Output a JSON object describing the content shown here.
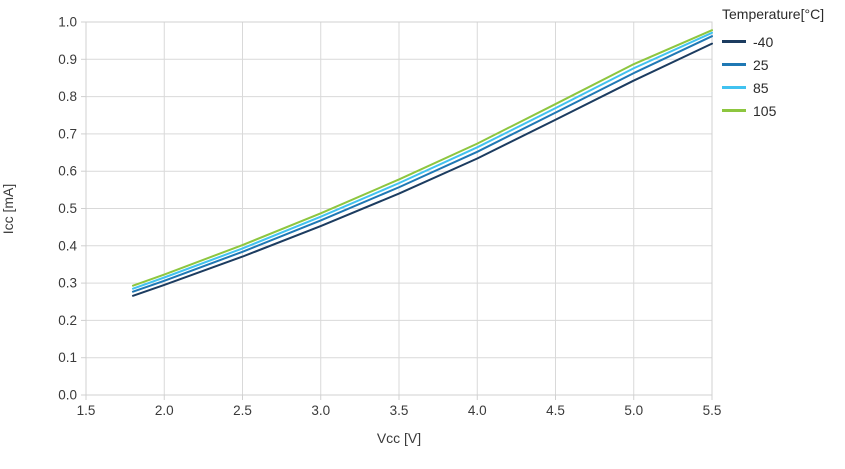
{
  "palette": {
    "background": "#ffffff",
    "grid": "#d9d9d9",
    "axis": "#d0d0d0",
    "tick_text": "#3a3a3a",
    "title_text": "#2b2b2b"
  },
  "chart_data": {
    "type": "line",
    "title": "",
    "xlabel": "Vcc [V]",
    "ylabel": "Icc [mA]",
    "xlim": [
      1.5,
      5.5
    ],
    "ylim": [
      0.0,
      1.0
    ],
    "grid": true,
    "legend_title": "Temperature[°C]",
    "legend_position": "top-right",
    "xticks": [
      1.5,
      2.0,
      2.5,
      3.0,
      3.5,
      4.0,
      4.5,
      5.0,
      5.5
    ],
    "xtick_labels": [
      "1.5",
      "2.0",
      "2.5",
      "3.0",
      "3.5",
      "4.0",
      "4.5",
      "5.0",
      "5.5"
    ],
    "yticks": [
      0.0,
      0.1,
      0.2,
      0.3,
      0.4,
      0.5,
      0.6,
      0.7,
      0.8,
      0.9,
      1.0
    ],
    "ytick_labels": [
      "0.0",
      "0.1",
      "0.2",
      "0.3",
      "0.4",
      "0.5",
      "0.6",
      "0.7",
      "0.8",
      "0.9",
      "1.0"
    ],
    "x": [
      1.8,
      2.0,
      2.5,
      3.0,
      3.5,
      4.0,
      4.5,
      5.0,
      5.5
    ],
    "series": [
      {
        "name": "-40",
        "color": "#1c3c60",
        "values": [
          0.266,
          0.295,
          0.371,
          0.453,
          0.54,
          0.634,
          0.738,
          0.843,
          0.942
        ]
      },
      {
        "name": "25",
        "color": "#1f78b4",
        "values": [
          0.277,
          0.306,
          0.384,
          0.468,
          0.557,
          0.652,
          0.757,
          0.863,
          0.962
        ]
      },
      {
        "name": "85",
        "color": "#41c2f0",
        "values": [
          0.285,
          0.315,
          0.393,
          0.478,
          0.568,
          0.664,
          0.769,
          0.876,
          0.971
        ]
      },
      {
        "name": "105",
        "color": "#8dc63f",
        "values": [
          0.293,
          0.323,
          0.402,
          0.487,
          0.578,
          0.674,
          0.78,
          0.887,
          0.978
        ]
      }
    ]
  }
}
